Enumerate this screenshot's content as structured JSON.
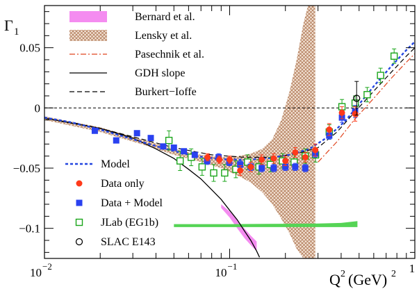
{
  "chart_data": {
    "type": "scatter",
    "ylabel_main": "Γ",
    "ylabel_sub": "1",
    "xlabel_main": "Q",
    "xlabel_sup": "2",
    "xlabel_unit": "(GeV)",
    "xlabel_unit_sup": "2",
    "x_scale": "log",
    "xlim": [
      0.01,
      1.0
    ],
    "ylim": [
      -0.125,
      0.085
    ],
    "x_ticks": [
      {
        "base": "10",
        "exp": "−2",
        "value": 0.01
      },
      {
        "base": "10",
        "exp": "−1",
        "value": 0.1
      },
      {
        "base": "",
        "exp": "1",
        "value": 1.0
      }
    ],
    "y_ticks": [
      {
        "label": "0.05",
        "value": 0.05
      },
      {
        "label": "0",
        "value": 0.0
      },
      {
        "label": "−0.05",
        "value": -0.05
      },
      {
        "label": "−0.1",
        "value": -0.1
      }
    ],
    "zero_line": true,
    "legend_top": [
      {
        "label": "Bernard et al.",
        "kind": "band",
        "color": "#f48cf0"
      },
      {
        "label": "Lensky et al.",
        "kind": "hatched-band",
        "color": "#c08a6a"
      },
      {
        "label": "Pasechnik et al.",
        "kind": "dash-dot",
        "color": "#e0451f"
      },
      {
        "label": "GDH slope",
        "kind": "solid",
        "color": "#000000"
      },
      {
        "label": "Burkert−Ioffe",
        "kind": "dashed",
        "color": "#000000"
      }
    ],
    "legend_bottom": [
      {
        "label": "Model",
        "kind": "dotted",
        "color": "#2346e0"
      },
      {
        "label": "Data only",
        "kind": "circle",
        "color": "#ff3a1a"
      },
      {
        "label": "Data + Model",
        "kind": "square",
        "color": "#2a41f0"
      },
      {
        "label": "JLab (EG1b)",
        "kind": "open-square",
        "color": "#1aa51a"
      },
      {
        "label": "SLAC E143",
        "kind": "open-circle",
        "color": "#000000"
      }
    ],
    "series": [
      {
        "name": "Model",
        "curve": [
          [
            0.01,
            -0.008
          ],
          [
            0.014,
            -0.012
          ],
          [
            0.02,
            -0.018
          ],
          [
            0.03,
            -0.026
          ],
          [
            0.045,
            -0.034
          ],
          [
            0.065,
            -0.04
          ],
          [
            0.09,
            -0.0425
          ],
          [
            0.12,
            -0.043
          ],
          [
            0.16,
            -0.042
          ],
          [
            0.21,
            -0.039
          ],
          [
            0.27,
            -0.034
          ],
          [
            0.34,
            -0.024
          ],
          [
            0.42,
            -0.011
          ],
          [
            0.5,
            0.003
          ],
          [
            0.6,
            0.018
          ],
          [
            0.75,
            0.035
          ],
          [
            0.9,
            0.048
          ],
          [
            1.0,
            0.055
          ]
        ]
      },
      {
        "name": "Data only",
        "points": [
          [
            0.076,
            -0.041,
            0.003
          ],
          [
            0.088,
            -0.043,
            0.003
          ],
          [
            0.1,
            -0.043,
            0.003
          ],
          [
            0.114,
            -0.052,
            0.004
          ],
          [
            0.13,
            -0.049,
            0.004
          ],
          [
            0.149,
            -0.043,
            0.004
          ],
          [
            0.173,
            -0.042,
            0.004
          ],
          [
            0.2,
            -0.044,
            0.004
          ],
          [
            0.226,
            -0.037,
            0.004
          ],
          [
            0.256,
            -0.041,
            0.004
          ],
          [
            0.29,
            -0.035,
            0.005
          ],
          [
            0.345,
            -0.018,
            0.005
          ],
          [
            0.404,
            -0.004,
            0.005
          ],
          [
            0.476,
            -0.005,
            0.006
          ]
        ]
      },
      {
        "name": "Data + Model",
        "points": [
          [
            0.0187,
            -0.019,
            0.002
          ],
          [
            0.0244,
            -0.027,
            0.002
          ],
          [
            0.0316,
            -0.021,
            0.002
          ],
          [
            0.0375,
            -0.025,
            0.002
          ],
          [
            0.0438,
            -0.032,
            0.002
          ],
          [
            0.05,
            -0.033,
            0.002
          ],
          [
            0.0566,
            -0.036,
            0.002
          ],
          [
            0.0648,
            -0.039,
            0.002
          ],
          [
            0.0756,
            -0.044,
            0.003
          ],
          [
            0.0872,
            -0.041,
            0.003
          ],
          [
            0.0996,
            -0.045,
            0.003
          ],
          [
            0.114,
            -0.047,
            0.003
          ],
          [
            0.13,
            -0.049,
            0.003
          ],
          [
            0.149,
            -0.05,
            0.003
          ],
          [
            0.173,
            -0.05,
            0.003
          ],
          [
            0.2,
            -0.049,
            0.003
          ],
          [
            0.226,
            -0.049,
            0.003
          ],
          [
            0.256,
            -0.05,
            0.003
          ],
          [
            0.29,
            -0.038,
            0.003
          ],
          [
            0.345,
            -0.023,
            0.003
          ],
          [
            0.404,
            -0.008,
            0.004
          ],
          [
            0.476,
            -0.003,
            0.005
          ]
        ]
      },
      {
        "name": "JLab (EG1b)",
        "points": [
          [
            0.047,
            -0.027,
            0.008
          ],
          [
            0.054,
            -0.044,
            0.008
          ],
          [
            0.062,
            -0.041,
            0.007
          ],
          [
            0.071,
            -0.049,
            0.007
          ],
          [
            0.082,
            -0.054,
            0.007
          ],
          [
            0.094,
            -0.054,
            0.007
          ],
          [
            0.108,
            -0.051,
            0.007
          ],
          [
            0.125,
            -0.045,
            0.006
          ],
          [
            0.144,
            -0.049,
            0.006
          ],
          [
            0.166,
            -0.047,
            0.006
          ],
          [
            0.193,
            -0.044,
            0.006
          ],
          [
            0.223,
            -0.045,
            0.006
          ],
          [
            0.256,
            -0.04,
            0.006
          ],
          [
            0.291,
            -0.039,
            0.006
          ],
          [
            0.345,
            -0.02,
            0.006
          ],
          [
            0.404,
            0.001,
            0.006
          ],
          [
            0.476,
            0.004,
            0.006
          ],
          [
            0.553,
            0.011,
            0.006
          ],
          [
            0.653,
            0.027,
            0.006
          ],
          [
            0.773,
            0.043,
            0.006
          ]
        ]
      },
      {
        "name": "SLAC E143",
        "points": [
          [
            0.485,
            0.008,
            0.014
          ]
        ]
      },
      {
        "name": "GDH slope",
        "curve": [
          [
            0.01,
            -0.0085
          ],
          [
            0.02,
            -0.017
          ],
          [
            0.03,
            -0.025
          ],
          [
            0.04,
            -0.034
          ],
          [
            0.05,
            -0.042
          ],
          [
            0.06,
            -0.051
          ],
          [
            0.07,
            -0.059
          ],
          [
            0.08,
            -0.068
          ],
          [
            0.09,
            -0.076
          ],
          [
            0.1,
            -0.085
          ],
          [
            0.11,
            -0.093
          ],
          [
            0.12,
            -0.102
          ],
          [
            0.13,
            -0.11
          ],
          [
            0.14,
            -0.119
          ],
          [
            0.145,
            -0.124
          ]
        ]
      },
      {
        "name": "Burkert−Ioffe",
        "curve": [
          [
            0.01,
            -0.0085
          ],
          [
            0.015,
            -0.013
          ],
          [
            0.02,
            -0.017
          ],
          [
            0.03,
            -0.024
          ],
          [
            0.05,
            -0.033
          ],
          [
            0.08,
            -0.039
          ],
          [
            0.12,
            -0.041
          ],
          [
            0.17,
            -0.041
          ],
          [
            0.23,
            -0.038
          ],
          [
            0.3,
            -0.033
          ],
          [
            0.38,
            -0.02
          ],
          [
            0.47,
            -0.004
          ],
          [
            0.6,
            0.014
          ],
          [
            0.75,
            0.03
          ],
          [
            0.9,
            0.043
          ],
          [
            1.0,
            0.05
          ]
        ]
      },
      {
        "name": "Pasechnik et al.",
        "curve": [
          [
            0.3,
            -0.045
          ],
          [
            0.38,
            -0.028
          ],
          [
            0.47,
            -0.01
          ],
          [
            0.6,
            0.008
          ],
          [
            0.75,
            0.025
          ],
          [
            0.9,
            0.038
          ],
          [
            1.0,
            0.045
          ]
        ]
      }
    ],
    "bands": {
      "Lensky et al.": {
        "x": [
          0.01,
          0.02,
          0.035,
          0.05,
          0.07,
          0.09,
          0.11,
          0.13,
          0.15,
          0.17,
          0.19,
          0.21,
          0.23,
          0.25,
          0.27,
          0.29
        ],
        "upper": [
          -0.007,
          -0.016,
          -0.027,
          -0.034,
          -0.039,
          -0.041,
          -0.04,
          -0.038,
          -0.034,
          -0.026,
          -0.01,
          0.013,
          0.04,
          0.07,
          0.09,
          0.09
        ],
        "lower": [
          -0.01,
          -0.02,
          -0.031,
          -0.039,
          -0.045,
          -0.05,
          -0.056,
          -0.062,
          -0.07,
          -0.08,
          -0.092,
          -0.104,
          -0.117,
          -0.125,
          -0.125,
          -0.125
        ]
      },
      "Bernard et al.": {
        "x": [
          0.09,
          0.1,
          0.11,
          0.12,
          0.13,
          0.14
        ],
        "upper": [
          -0.08,
          -0.086,
          -0.093,
          -0.1,
          -0.106,
          -0.111
        ],
        "lower": [
          -0.083,
          -0.091,
          -0.1,
          -0.108,
          -0.114,
          -0.119
        ]
      },
      "JLab (EG1b)": {
        "x": [
          0.05,
          0.1,
          0.2,
          0.3,
          0.4,
          0.49
        ],
        "upper": [
          -0.0965,
          -0.0965,
          -0.0962,
          -0.096,
          -0.0955,
          -0.094
        ],
        "lower": [
          -0.099,
          -0.099,
          -0.099,
          -0.099,
          -0.099,
          -0.099
        ]
      }
    }
  }
}
